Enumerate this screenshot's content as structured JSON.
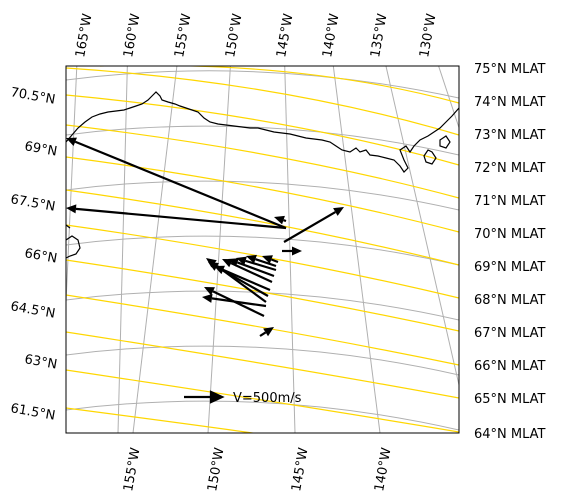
{
  "map": {
    "top_lon_labels": [
      "165°W",
      "160°W",
      "155°W",
      "150°W",
      "145°W",
      "140°W",
      "135°W",
      "130°W"
    ],
    "bottom_lon_labels": [
      "155°W",
      "150°W",
      "145°W",
      "140°W"
    ],
    "left_lat_labels": [
      "70.5°N",
      "69°N",
      "67.5°N",
      "66°N",
      "64.5°N",
      "63°N",
      "61.5°N"
    ],
    "right_mlat_labels": [
      "75°N MLAT",
      "74°N MLAT",
      "73°N MLAT",
      "72°N MLAT",
      "71°N MLAT",
      "70°N MLAT",
      "69°N MLAT",
      "68°N MLAT",
      "67°N MLAT",
      "66°N MLAT",
      "65°N MLAT",
      "64°N MLAT"
    ],
    "scale_label": "V=500m/s",
    "colors": {
      "graticule": "#b0b0b0",
      "mlat_contour": "#ffd700",
      "coastline": "#000000",
      "vector": "#000000",
      "frame": "#000000"
    }
  }
}
